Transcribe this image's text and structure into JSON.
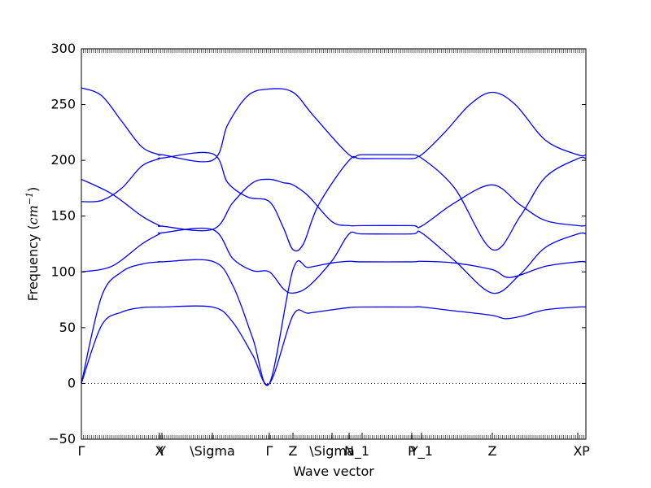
{
  "chart_data": {
    "type": "line",
    "xlabel": "Wave vector",
    "ylabel_text": "Frequency (",
    "ylabel_unit": "cm",
    "ylabel_exp": "−1",
    "ylabel_close": ")",
    "ylim": [
      -50,
      300
    ],
    "xlim": [
      0,
      1
    ],
    "yticks": [
      -50,
      0,
      50,
      100,
      150,
      200,
      250,
      300
    ],
    "ytick_labels": [
      "−50",
      "0",
      "50",
      "100",
      "150",
      "200",
      "250",
      "300"
    ],
    "xticks": [
      {
        "x": 0.0,
        "label": "Γ"
      },
      {
        "x": 0.1548,
        "label": "X"
      },
      {
        "x": 0.1597,
        "label": "Y"
      },
      {
        "x": 0.2597,
        "label": "\\Sigma"
      },
      {
        "x": 0.3726,
        "label": "Γ"
      },
      {
        "x": 0.4194,
        "label": "Z"
      },
      {
        "x": 0.4968,
        "label": "\\Sigma"
      },
      {
        "x": 0.5306,
        "label": "N"
      },
      {
        "x": 0.5565,
        "label": "_1"
      },
      {
        "x": 0.6548,
        "label": "P"
      },
      {
        "x": 0.6742,
        "label": "Y_1"
      },
      {
        "x": 0.8145,
        "label": "Z"
      },
      {
        "x": 0.9839,
        "label": "X"
      },
      {
        "x": 1.0,
        "label": "P"
      }
    ],
    "zero_line": {
      "y": 0,
      "style": "dotted"
    },
    "line_color": "#0000ff",
    "series": [
      {
        "x": [
          0,
          0.04,
          0.08,
          0.12,
          0.1548,
          0.1597,
          0.2597,
          0.3,
          0.34,
          0.3726,
          0.4194,
          0.45,
          0.4968,
          0.5306,
          0.5565,
          0.6548,
          0.6742,
          0.74,
          0.8145,
          0.84,
          0.87,
          0.92,
          0.9839,
          1.0
        ],
        "y": [
          0,
          52,
          64,
          68,
          68.5,
          68.5,
          68.5,
          55,
          25,
          0,
          61,
          63,
          66,
          68,
          68.5,
          68.5,
          68.5,
          65,
          61,
          58,
          60,
          66,
          68.5,
          68.5
        ]
      },
      {
        "x": [
          0,
          0.04,
          0.08,
          0.12,
          0.1548,
          0.1597,
          0.2597,
          0.3,
          0.34,
          0.3726,
          0.4194,
          0.45,
          0.4968,
          0.5306,
          0.5565,
          0.6548,
          0.6742,
          0.74,
          0.8145,
          0.85,
          0.92,
          0.9839,
          1.0
        ],
        "y": [
          0,
          78,
          100,
          107,
          109,
          109,
          109.5,
          88,
          40,
          0,
          102,
          104,
          108,
          109.5,
          109,
          109,
          109.5,
          108,
          102,
          95,
          105,
          109,
          109
        ]
      },
      {
        "x": [
          0,
          0.06,
          0.12,
          0.1548,
          0.1597,
          0.2597,
          0.3,
          0.34,
          0.3726,
          0.4,
          0.4194,
          0.45,
          0.4968,
          0.5306,
          0.5565,
          0.6548,
          0.6742,
          0.74,
          0.8145,
          0.87,
          0.92,
          0.9839,
          1.0
        ],
        "y": [
          100,
          105,
          125,
          134,
          135,
          138,
          112,
          101,
          100,
          85,
          81,
          87,
          110,
          134,
          134,
          134,
          135,
          110,
          81,
          98,
          122,
          134,
          134
        ]
      },
      {
        "x": [
          0,
          0.06,
          0.12,
          0.1548,
          0.1597,
          0.2597,
          0.3,
          0.34,
          0.3726,
          0.4,
          0.4194,
          0.45,
          0.4968,
          0.5306,
          0.5565,
          0.6548,
          0.6742,
          0.74,
          0.8145,
          0.87,
          0.92,
          0.9839,
          1.0
        ],
        "y": [
          183,
          170,
          150,
          141.5,
          141,
          138,
          162,
          180,
          183,
          180,
          178,
          168,
          145,
          141.5,
          141.5,
          141.5,
          141,
          162,
          178,
          160,
          146,
          141.5,
          141.5
        ]
      },
      {
        "x": [
          0,
          0.04,
          0.08,
          0.12,
          0.1548,
          0.1597,
          0.2597,
          0.29,
          0.33,
          0.3726,
          0.4,
          0.4194,
          0.44,
          0.47,
          0.5306,
          0.5565,
          0.6548,
          0.6742,
          0.74,
          0.8145,
          0.87,
          0.92,
          0.9839,
          1.0
        ],
        "y": [
          163,
          164,
          175,
          195,
          201.5,
          202,
          206,
          180,
          167,
          163,
          140,
          120,
          125,
          160,
          200,
          201.5,
          201.5,
          202,
          175,
          120,
          150,
          185,
          201.5,
          201.5
        ]
      },
      {
        "x": [
          0,
          0.04,
          0.08,
          0.12,
          0.1548,
          0.1597,
          0.2597,
          0.29,
          0.33,
          0.3726,
          0.4194,
          0.46,
          0.5306,
          0.5565,
          0.6548,
          0.6742,
          0.72,
          0.77,
          0.8145,
          0.86,
          0.92,
          0.9839,
          1.0
        ],
        "y": [
          265,
          258,
          235,
          212,
          205,
          205,
          200,
          232,
          258,
          264,
          261,
          240,
          205,
          205,
          205,
          205,
          225,
          250,
          261,
          250,
          218,
          205,
          205
        ]
      }
    ]
  }
}
